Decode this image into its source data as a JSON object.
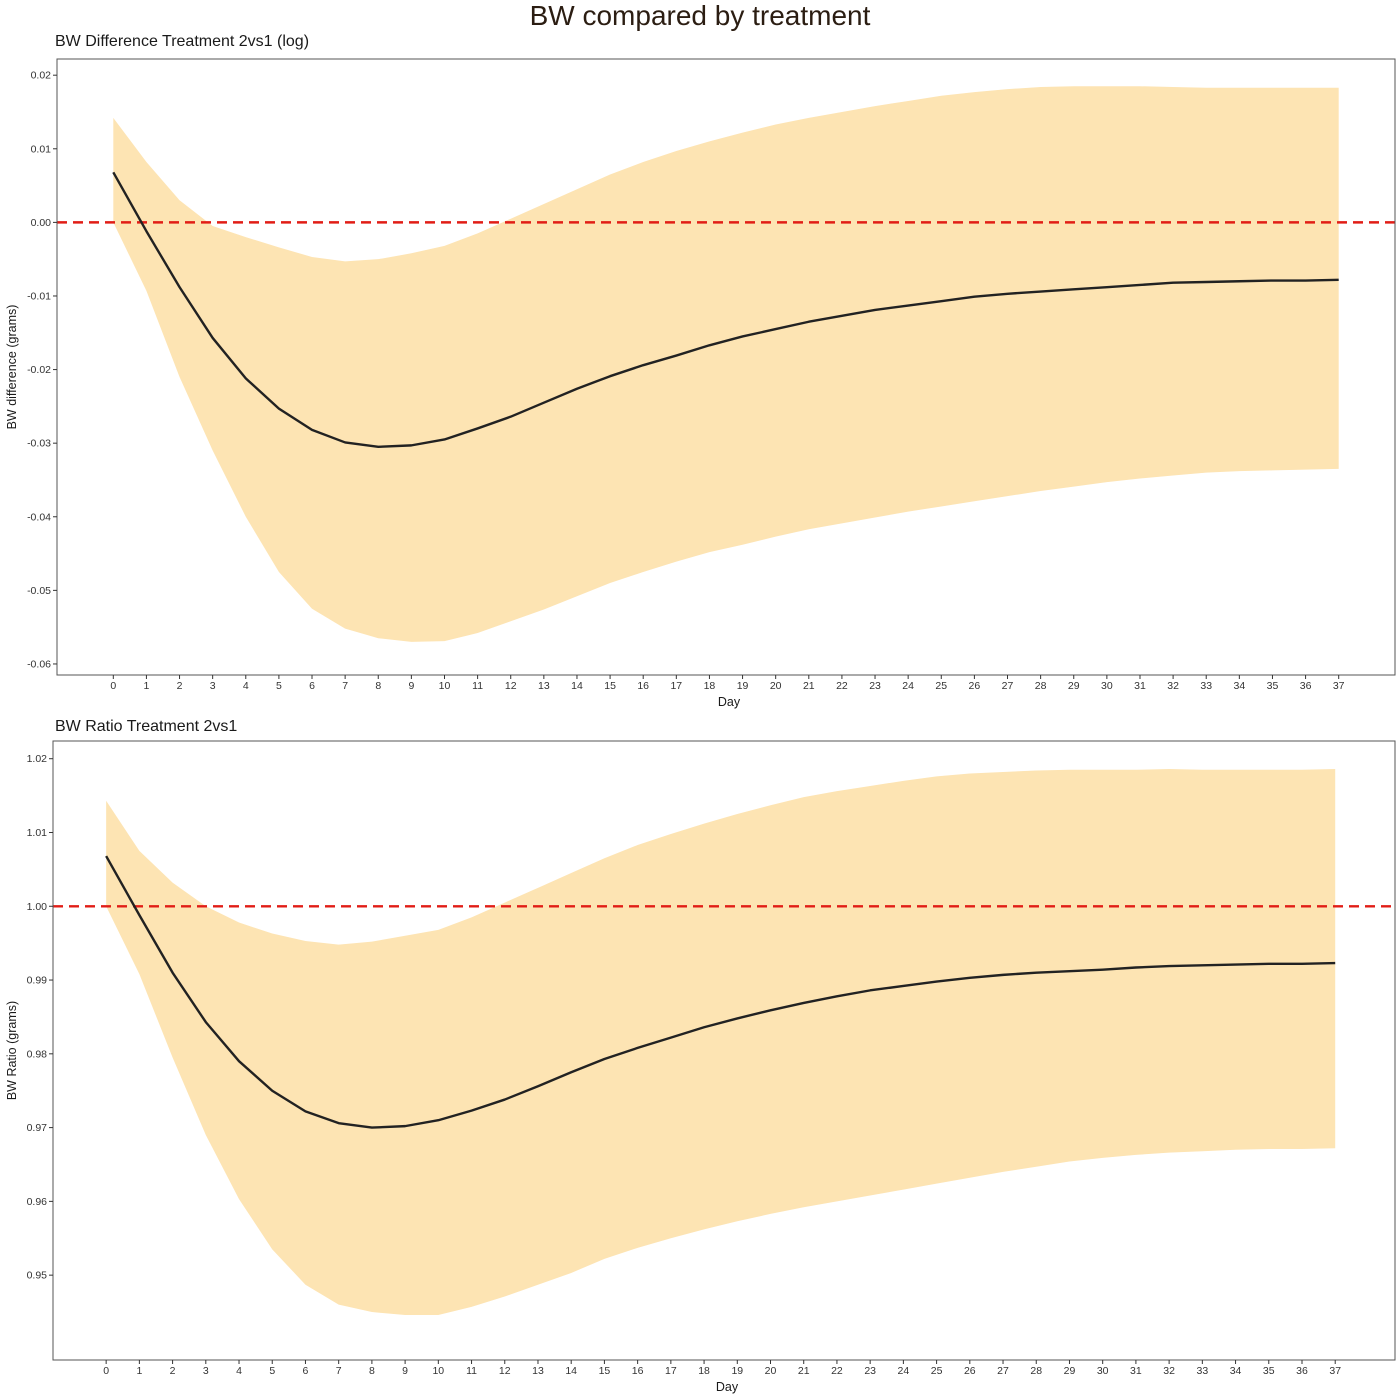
{
  "figure": {
    "title": "BW compared by treatment"
  },
  "colors": {
    "ribbon": "#fde4b3",
    "line": "#222222",
    "reference_line": "#e11d16",
    "panel_border": "#555555",
    "background": "#ffffff"
  },
  "chart_data": [
    {
      "type": "line",
      "title": "BW Difference Treatment 2vs1 (log)",
      "xlabel": "Day",
      "ylabel": "BW difference (grams)",
      "grid": false,
      "xlim": [
        -1.7,
        38.7
      ],
      "ylim": [
        -0.0615,
        0.0222
      ],
      "x": [
        0,
        1,
        2,
        3,
        4,
        5,
        6,
        7,
        8,
        9,
        10,
        11,
        12,
        13,
        14,
        15,
        16,
        17,
        18,
        19,
        20,
        21,
        22,
        23,
        24,
        25,
        26,
        27,
        28,
        29,
        30,
        31,
        32,
        33,
        34,
        35,
        36,
        37
      ],
      "x_tick_labels": [
        "0",
        "1",
        "2",
        "3",
        "4",
        "5",
        "6",
        "7",
        "8",
        "9",
        "10",
        "11",
        "12",
        "13",
        "14",
        "15",
        "16",
        "17",
        "18",
        "19",
        "20",
        "21",
        "22",
        "23",
        "24",
        "25",
        "26",
        "27",
        "28",
        "29",
        "30",
        "31",
        "32",
        "33",
        "34",
        "35",
        "36",
        "37"
      ],
      "y_ticks": [
        0.02,
        0.01,
        0.0,
        -0.01,
        -0.02,
        -0.03,
        -0.04,
        -0.05,
        -0.06
      ],
      "y_tick_labels": [
        "0.02",
        "0.01",
        "0.00",
        "-0.01",
        "-0.02",
        "-0.03",
        "-0.04",
        "-0.05",
        "-0.06"
      ],
      "reference_line": {
        "y": 0.0,
        "style": "dashed"
      },
      "series": [
        {
          "values": [
            0.0068,
            -0.0012,
            -0.0088,
            -0.0157,
            -0.0212,
            -0.0253,
            -0.0282,
            -0.0299,
            -0.0305,
            -0.0303,
            -0.0295,
            -0.028,
            -0.0264,
            -0.0245,
            -0.0226,
            -0.0209,
            -0.0194,
            -0.0181,
            -0.0167,
            -0.0155,
            -0.0145,
            -0.0135,
            -0.0127,
            -0.0119,
            -0.0113,
            -0.0107,
            -0.0101,
            -0.0097,
            -0.0094,
            -0.0091,
            -0.0088,
            -0.0085,
            -0.0082,
            -0.0081,
            -0.008,
            -0.0079,
            -0.0079,
            -0.0078
          ],
          "lower": [
            0.0,
            -0.0093,
            -0.021,
            -0.031,
            -0.04,
            -0.0475,
            -0.0525,
            -0.0552,
            -0.0565,
            -0.057,
            -0.0569,
            -0.0558,
            -0.0542,
            -0.0526,
            -0.0508,
            -0.049,
            -0.0475,
            -0.0461,
            -0.0448,
            -0.0438,
            -0.0427,
            -0.0417,
            -0.0409,
            -0.0401,
            -0.0393,
            -0.0386,
            -0.0379,
            -0.0372,
            -0.0365,
            -0.0359,
            -0.0353,
            -0.0348,
            -0.0344,
            -0.034,
            -0.0338,
            -0.0337,
            -0.0336,
            -0.0335
          ],
          "upper": [
            0.0142,
            0.0082,
            0.003,
            -0.0005,
            -0.002,
            -0.0034,
            -0.0047,
            -0.0053,
            -0.005,
            -0.0042,
            -0.0032,
            -0.0015,
            0.0005,
            0.0025,
            0.0045,
            0.0065,
            0.0082,
            0.0097,
            0.011,
            0.0122,
            0.0133,
            0.0142,
            0.015,
            0.0158,
            0.0165,
            0.0172,
            0.0177,
            0.0181,
            0.0184,
            0.0185,
            0.0185,
            0.0185,
            0.0184,
            0.0183,
            0.0183,
            0.0183,
            0.0183,
            0.0183
          ]
        }
      ]
    },
    {
      "type": "line",
      "title": "BW Ratio Treatment 2vs1",
      "xlabel": "Day",
      "ylabel": "BW Ratio (grams)",
      "grid": false,
      "xlim": [
        -1.6,
        38.8
      ],
      "ylim": [
        0.9385,
        1.0224
      ],
      "x": [
        0,
        1,
        2,
        3,
        4,
        5,
        6,
        7,
        8,
        9,
        10,
        11,
        12,
        13,
        14,
        15,
        16,
        17,
        18,
        19,
        20,
        21,
        22,
        23,
        24,
        25,
        26,
        27,
        28,
        29,
        30,
        31,
        32,
        33,
        34,
        35,
        36,
        37
      ],
      "x_tick_labels": [
        "0",
        "1",
        "2",
        "3",
        "4",
        "5",
        "6",
        "7",
        "8",
        "9",
        "10",
        "11",
        "12",
        "13",
        "14",
        "15",
        "16",
        "17",
        "18",
        "19",
        "20",
        "21",
        "22",
        "23",
        "24",
        "25",
        "26",
        "27",
        "28",
        "29",
        "30",
        "31",
        "32",
        "33",
        "34",
        "35",
        "36",
        "37"
      ],
      "y_ticks": [
        1.02,
        1.01,
        1.0,
        0.99,
        0.98,
        0.97,
        0.96,
        0.95
      ],
      "y_tick_labels": [
        "1.02",
        "1.01",
        "1.00",
        "0.99",
        "0.98",
        "0.97",
        "0.96",
        "0.95"
      ],
      "reference_line": {
        "y": 1.0,
        "style": "dashed"
      },
      "series": [
        {
          "values": [
            1.0068,
            0.9988,
            0.991,
            0.9843,
            0.979,
            0.975,
            0.9722,
            0.9706,
            0.97,
            0.9702,
            0.971,
            0.9723,
            0.9738,
            0.9756,
            0.9775,
            0.9793,
            0.9808,
            0.9822,
            0.9836,
            0.9848,
            0.9859,
            0.9869,
            0.9878,
            0.9886,
            0.9892,
            0.9898,
            0.9903,
            0.9907,
            0.991,
            0.9912,
            0.9914,
            0.9917,
            0.9919,
            0.992,
            0.9921,
            0.9922,
            0.9922,
            0.9923
          ],
          "lower": [
            1.0,
            0.9908,
            0.9795,
            0.969,
            0.9603,
            0.9535,
            0.9487,
            0.946,
            0.945,
            0.9446,
            0.9446,
            0.9457,
            0.9471,
            0.9487,
            0.9503,
            0.9522,
            0.9537,
            0.955,
            0.9562,
            0.9573,
            0.9583,
            0.9592,
            0.96,
            0.9608,
            0.9616,
            0.9624,
            0.9632,
            0.964,
            0.9647,
            0.9654,
            0.9659,
            0.9663,
            0.9666,
            0.9668,
            0.967,
            0.9671,
            0.9671,
            0.9672
          ],
          "upper": [
            1.0143,
            1.0075,
            1.0032,
            1.0,
            0.9978,
            0.9963,
            0.9953,
            0.9948,
            0.9952,
            0.996,
            0.9968,
            0.9985,
            1.0005,
            1.0025,
            1.0045,
            1.0065,
            1.0083,
            1.0098,
            1.0112,
            1.0125,
            1.0137,
            1.0148,
            1.0156,
            1.0163,
            1.017,
            1.0176,
            1.018,
            1.0182,
            1.0184,
            1.0185,
            1.0185,
            1.0185,
            1.0186,
            1.0185,
            1.0185,
            1.0185,
            1.0185,
            1.0186
          ]
        }
      ]
    }
  ]
}
